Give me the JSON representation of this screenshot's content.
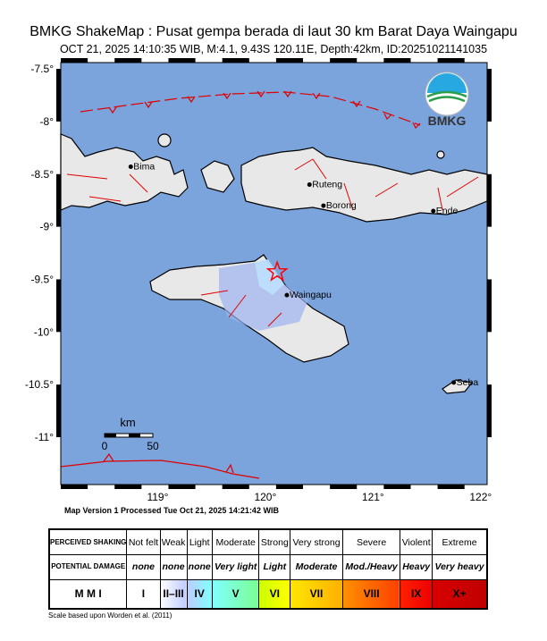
{
  "header": {
    "title": "BMKG ShakeMap : Pusat gempa berada di laut 30 km Barat Daya Waingapu",
    "subtitle": "OCT 21, 2025 14:10:35 WIB, M:4.1, 9.43S 120.11E, Depth:42km, ID:20251021141035"
  },
  "logo": {
    "text": "BMKG"
  },
  "map": {
    "lon_range": [
      118.1,
      122.06
    ],
    "lat_range": [
      -11.45,
      -7.44
    ],
    "lat_ticks": [
      "-7.5°",
      "-8°",
      "-8.5°",
      "-9°",
      "-9.5°",
      "-10°",
      "-10.5°",
      "-11°"
    ],
    "lon_ticks": [
      "119°",
      "120°",
      "121°",
      "122°"
    ],
    "sea_color": "#7ba3dc",
    "epicenter": {
      "lon": 120.11,
      "lat": -9.43,
      "icon": "star-icon",
      "color": "#ff0000"
    },
    "cities": [
      {
        "name": "Bima",
        "lon": 118.75,
        "lat": -8.43
      },
      {
        "name": "Ruteng",
        "lon": 120.41,
        "lat": -8.6
      },
      {
        "name": "Borong",
        "lon": 120.54,
        "lat": -8.8
      },
      {
        "name": "Ende",
        "lon": 121.56,
        "lat": -8.85
      },
      {
        "name": "Waingapu",
        "lon": 120.2,
        "lat": -9.65
      },
      {
        "name": "Seba",
        "lon": 121.75,
        "lat": -10.48
      }
    ],
    "scale": {
      "unit": "km",
      "start": "0",
      "end": "50"
    }
  },
  "version": "Map Version 1 Processed Tue Oct 21, 2025 14:21:42 WIB",
  "legend": {
    "row_headers": {
      "shaking": "PERCEIVED SHAKING",
      "damage": "POTENTIAL DAMAGE",
      "mmi": "M M I"
    },
    "columns": [
      {
        "shaking": "Not felt",
        "damage": "none",
        "mmi": "I",
        "color": "#ffffff"
      },
      {
        "shaking": "Weak",
        "damage": "none",
        "mmi": "II–III",
        "color": "#bfccff"
      },
      {
        "shaking": "Light",
        "damage": "none",
        "mmi": "IV",
        "color": "#80ffff"
      },
      {
        "shaking": "Moderate",
        "damage": "Very light",
        "mmi": "V",
        "color": "#7aff93"
      },
      {
        "shaking": "Strong",
        "damage": "Light",
        "mmi": "VI",
        "color": "#ffff00"
      },
      {
        "shaking": "Very strong",
        "damage": "Moderate",
        "mmi": "VII",
        "color": "#ffc800"
      },
      {
        "shaking": "Severe",
        "damage": "Mod./Heavy",
        "mmi": "VIII",
        "color": "#ff9100"
      },
      {
        "shaking": "Violent",
        "damage": "Heavy",
        "mmi": "IX",
        "color": "#ff0000"
      },
      {
        "shaking": "Extreme",
        "damage": "Very heavy",
        "mmi": "X+",
        "color": "#c80000"
      }
    ],
    "reference": "Scale based upon Worden et al. (2011)"
  }
}
